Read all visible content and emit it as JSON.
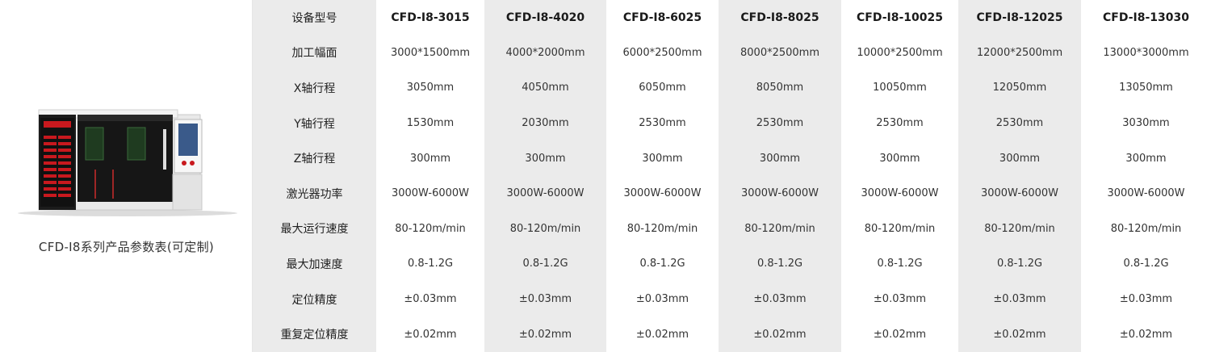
{
  "caption": "CFD-I8系列产品参数表(可定制)",
  "row_labels": [
    "设备型号",
    "加工幅面",
    "X轴行程",
    "Y轴行程",
    "Z轴行程",
    "激光器功率",
    "最大运行速度",
    "最大加速度",
    "定位精度",
    "重复定位精度"
  ],
  "models": [
    {
      "name": "CFD-I8-3015",
      "values": [
        "3000*1500mm",
        "3050mm",
        "1530mm",
        "300mm",
        "3000W-6000W",
        "80-120m/min",
        "0.8-1.2G",
        "±0.03mm",
        "±0.02mm"
      ]
    },
    {
      "name": "CFD-I8-4020",
      "values": [
        "4000*2000mm",
        "4050mm",
        "2030mm",
        "300mm",
        "3000W-6000W",
        "80-120m/min",
        "0.8-1.2G",
        "±0.03mm",
        "±0.02mm"
      ]
    },
    {
      "name": "CFD-I8-6025",
      "values": [
        "6000*2500mm",
        "6050mm",
        "2530mm",
        "300mm",
        "3000W-6000W",
        "80-120m/min",
        "0.8-1.2G",
        "±0.03mm",
        "±0.02mm"
      ]
    },
    {
      "name": "CFD-I8-8025",
      "values": [
        "8000*2500mm",
        "8050mm",
        "2530mm",
        "300mm",
        "3000W-6000W",
        "80-120m/min",
        "0.8-1.2G",
        "±0.03mm",
        "±0.02mm"
      ]
    },
    {
      "name": "CFD-I8-10025",
      "values": [
        "10000*2500mm",
        "10050mm",
        "2530mm",
        "300mm",
        "3000W-6000W",
        "80-120m/min",
        "0.8-1.2G",
        "±0.03mm",
        "±0.02mm"
      ]
    },
    {
      "name": "CFD-I8-12025",
      "values": [
        "12000*2500mm",
        "12050mm",
        "2530mm",
        "300mm",
        "3000W-6000W",
        "80-120m/min",
        "0.8-1.2G",
        "±0.03mm",
        "±0.02mm"
      ]
    },
    {
      "name": "CFD-I8-13030",
      "values": [
        "13000*3000mm",
        "13050mm",
        "3030mm",
        "300mm",
        "3000W-6000W",
        "80-120m/min",
        "0.8-1.2G",
        "±0.03mm",
        "±0.02mm"
      ]
    }
  ],
  "colors": {
    "stripe": "#ebebeb",
    "machine_red": "#c8191e",
    "machine_dark": "#1c1c1c"
  }
}
